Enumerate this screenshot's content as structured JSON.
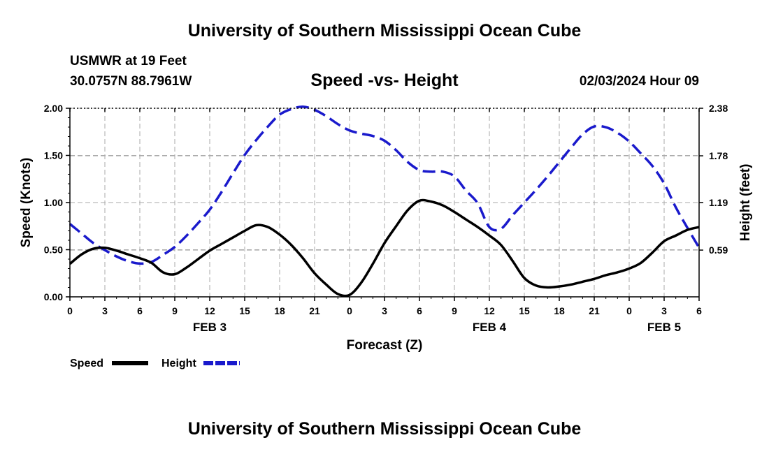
{
  "header": {
    "title": "University of Southern Mississippi Ocean Cube",
    "station": "USMWR at 19 Feet",
    "coordinates": "30.0757N  88.7961W",
    "subtitle": "Speed -vs- Height",
    "datetime": "02/03/2024 Hour 09"
  },
  "footer": {
    "title": "University of Southern Mississippi Ocean Cube"
  },
  "colors": {
    "speed": "#000000",
    "height": "#1a1acc",
    "grid": "#aaaaaa"
  },
  "chart_data": {
    "type": "line",
    "title": "Speed -vs- Height",
    "xlabel": "Forecast (Z)",
    "ylabel": "Speed (Knots)",
    "y2label": "Height (feet)",
    "x_unit": "hours since FEB 3 00Z",
    "xlim": [
      0,
      54
    ],
    "ylim": [
      0,
      2.0
    ],
    "y2lim": [
      0,
      2.38
    ],
    "x_ticks": [
      0,
      3,
      6,
      9,
      12,
      15,
      18,
      21,
      24,
      27,
      30,
      33,
      36,
      39,
      42,
      45,
      48,
      51,
      54
    ],
    "x_tick_labels": [
      "0",
      "3",
      "6",
      "9",
      "12",
      "15",
      "18",
      "21",
      "0",
      "3",
      "6",
      "9",
      "12",
      "15",
      "18",
      "21",
      "0",
      "3",
      "6"
    ],
    "y_ticks": [
      0,
      0.5,
      1.0,
      1.5,
      2.0
    ],
    "y_tick_labels": [
      "0.00",
      "0.50",
      "1.00",
      "1.50",
      "2.00"
    ],
    "y2_ticks": [
      0.59,
      1.19,
      1.78,
      2.38
    ],
    "y2_tick_labels": [
      "0.59",
      "1.19",
      "1.78",
      "2.38"
    ],
    "date_labels": [
      {
        "x": 12,
        "label": "FEB 3"
      },
      {
        "x": 36,
        "label": "FEB 4"
      },
      {
        "x": 51,
        "label": "FEB 5"
      }
    ],
    "series": [
      {
        "name": "Speed",
        "axis": "left",
        "style": "solid",
        "x": [
          0,
          1,
          2,
          3,
          4,
          5,
          6,
          7,
          8,
          9,
          10,
          11,
          12,
          13,
          14,
          15,
          16,
          17,
          18,
          19,
          20,
          21,
          22,
          23,
          24,
          25,
          26,
          27,
          28,
          29,
          30,
          31,
          32,
          33,
          34,
          35,
          36,
          37,
          38,
          39,
          40,
          41,
          42,
          43,
          44,
          45,
          46,
          47,
          48,
          49,
          50,
          51,
          52,
          53,
          54
        ],
        "values": [
          0.35,
          0.45,
          0.51,
          0.52,
          0.49,
          0.45,
          0.41,
          0.36,
          0.26,
          0.24,
          0.31,
          0.4,
          0.49,
          0.56,
          0.63,
          0.7,
          0.76,
          0.74,
          0.66,
          0.55,
          0.41,
          0.25,
          0.13,
          0.03,
          0.02,
          0.15,
          0.35,
          0.57,
          0.75,
          0.92,
          1.02,
          1.01,
          0.97,
          0.9,
          0.82,
          0.74,
          0.65,
          0.55,
          0.38,
          0.2,
          0.12,
          0.1,
          0.11,
          0.13,
          0.16,
          0.19,
          0.23,
          0.26,
          0.3,
          0.36,
          0.47,
          0.59,
          0.65,
          0.71,
          0.74
        ]
      },
      {
        "name": "Height",
        "axis": "right",
        "style": "dashed",
        "x": [
          0,
          1,
          2,
          3,
          4,
          5,
          6,
          7,
          8,
          9,
          10,
          11,
          12,
          13,
          14,
          15,
          16,
          17,
          18,
          19,
          20,
          21,
          22,
          23,
          24,
          25,
          26,
          27,
          28,
          29,
          30,
          31,
          32,
          33,
          34,
          35,
          36,
          37,
          38,
          39,
          40,
          41,
          42,
          43,
          44,
          45,
          46,
          47,
          48,
          49,
          50,
          51,
          52,
          53,
          54
        ],
        "values": [
          0.92,
          0.8,
          0.68,
          0.59,
          0.51,
          0.45,
          0.42,
          0.44,
          0.53,
          0.63,
          0.77,
          0.93,
          1.1,
          1.32,
          1.56,
          1.79,
          1.98,
          2.15,
          2.3,
          2.37,
          2.4,
          2.36,
          2.28,
          2.18,
          2.1,
          2.06,
          2.03,
          1.97,
          1.85,
          1.7,
          1.6,
          1.58,
          1.58,
          1.52,
          1.34,
          1.18,
          0.88,
          0.86,
          1.03,
          1.19,
          1.35,
          1.52,
          1.7,
          1.88,
          2.05,
          2.15,
          2.14,
          2.07,
          1.96,
          1.81,
          1.65,
          1.43,
          1.13,
          0.87,
          0.62
        ]
      }
    ]
  },
  "legend": [
    {
      "name": "Speed",
      "style": "solid"
    },
    {
      "name": "Height",
      "style": "dashed"
    }
  ]
}
